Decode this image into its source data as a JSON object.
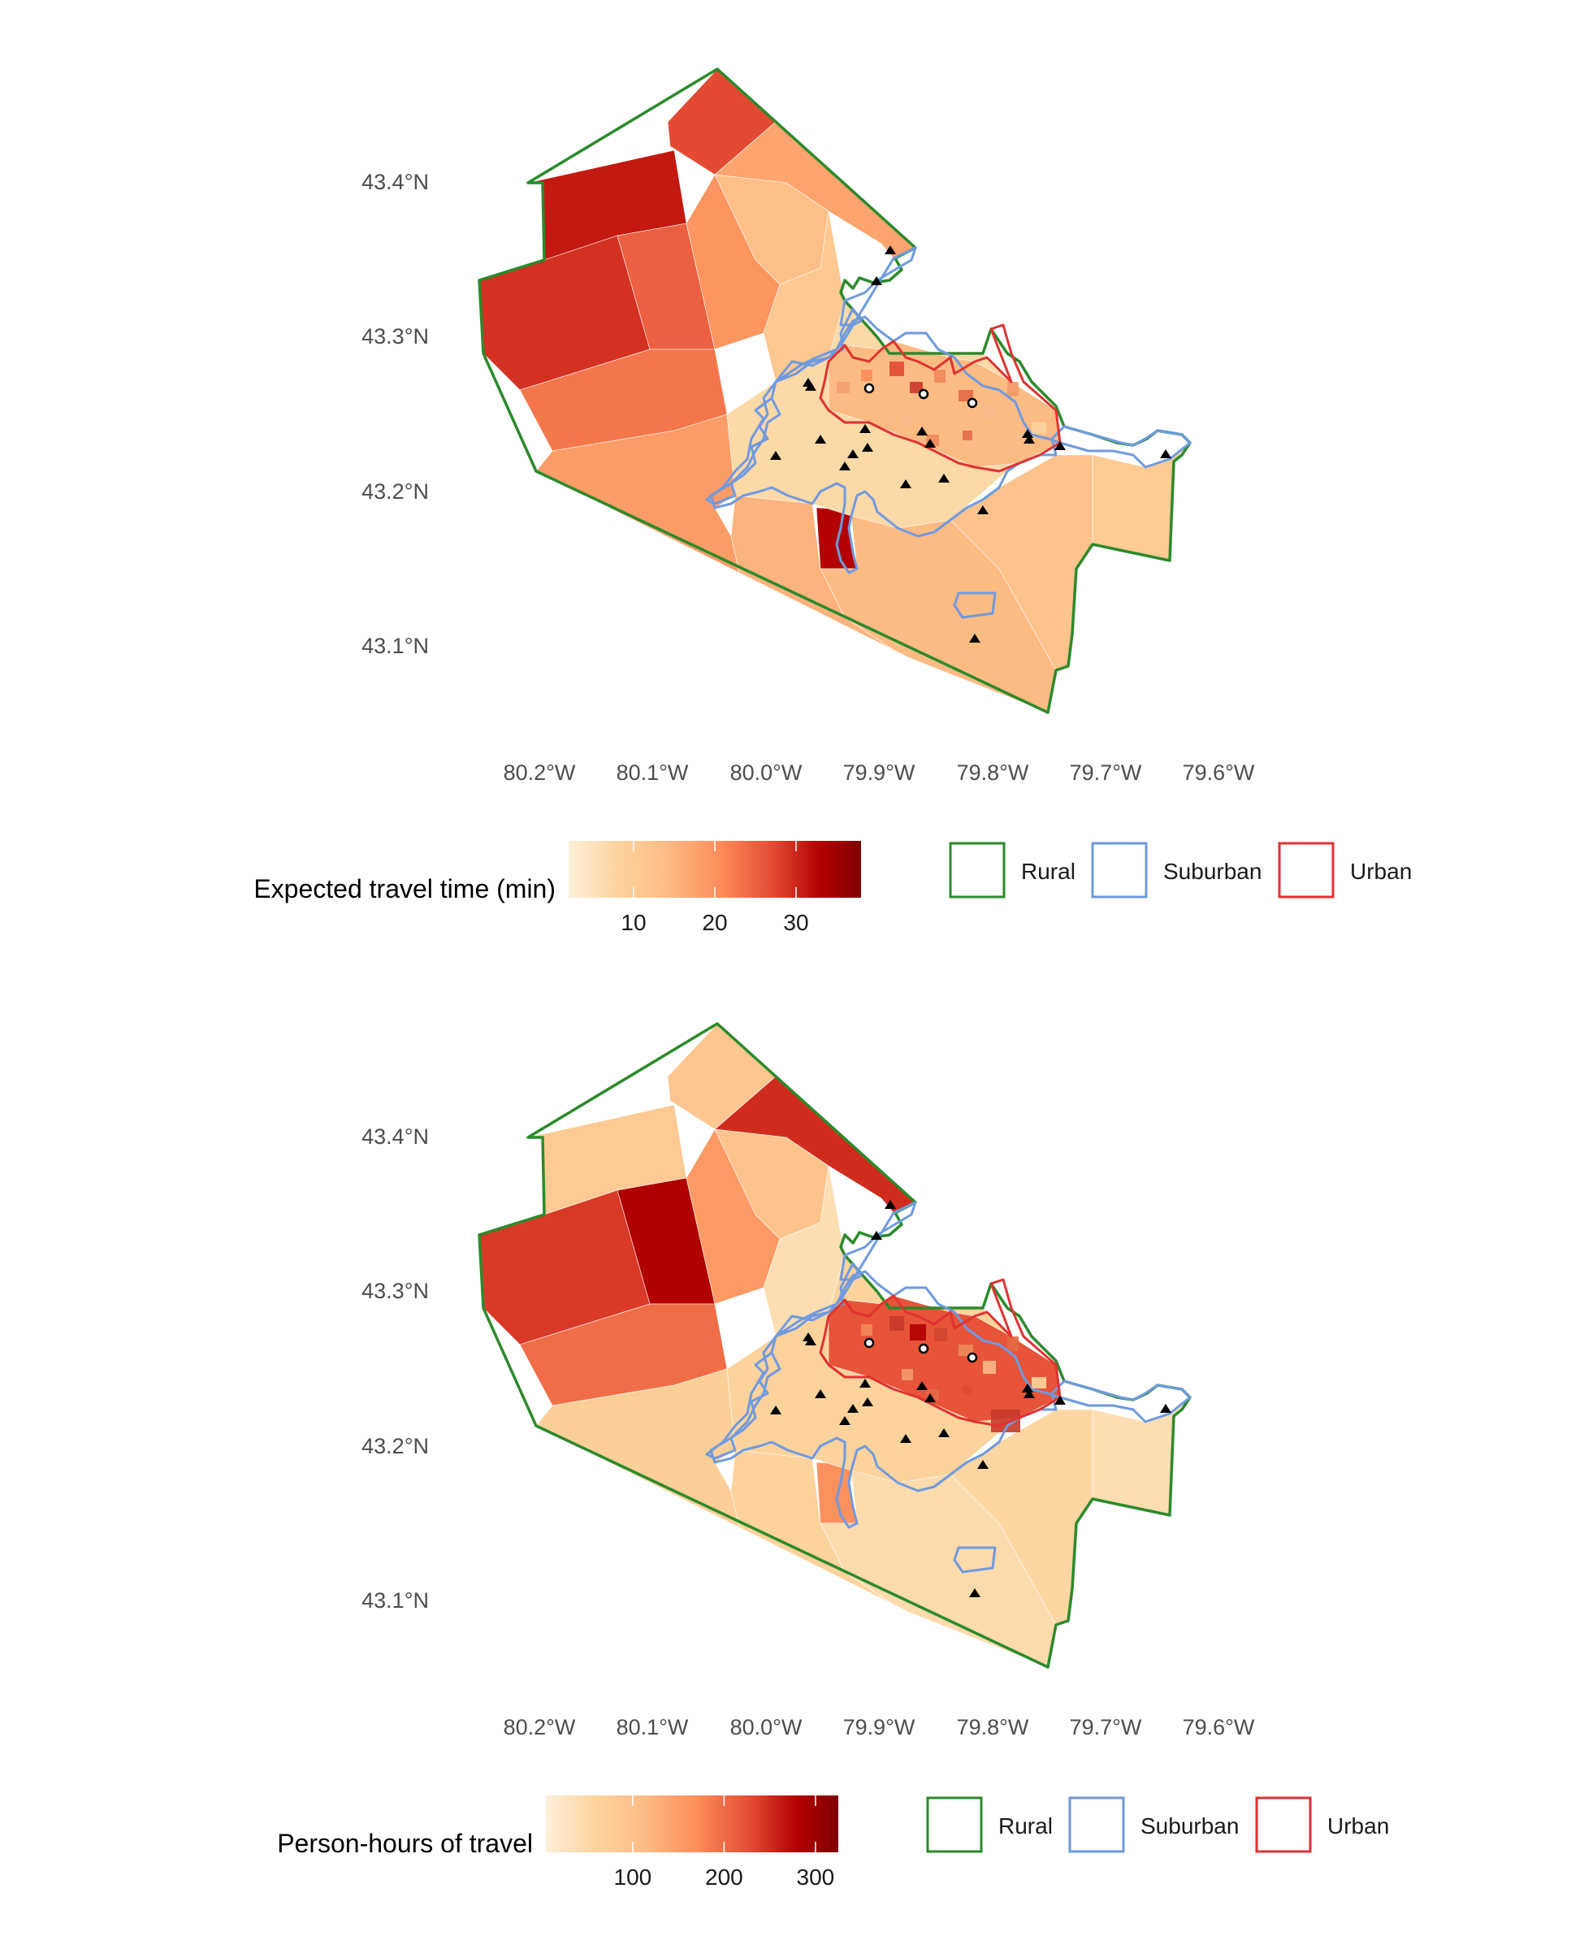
{
  "chart_data": [
    {
      "type": "heatmap",
      "subtype": "choropleth-map",
      "latitude_ticks": [
        "43.4°N",
        "43.3°N",
        "43.2°N",
        "43.1°N"
      ],
      "longitude_ticks": [
        "80.2°W",
        "80.1°W",
        "80.0°W",
        "79.9°W",
        "79.8°W",
        "79.7°W",
        "79.6°W"
      ],
      "colorbar": {
        "title": "Expected travel time (min)",
        "ticks": [
          "10",
          "20",
          "30"
        ],
        "tick_values": [
          10,
          20,
          30
        ],
        "range": [
          2,
          38
        ],
        "colors": [
          "#fdf0d9",
          "#fdd49e",
          "#fdbb84",
          "#fc8d59",
          "#e34a33",
          "#b30000",
          "#7f0000"
        ]
      },
      "region_legend": [
        {
          "label": "Rural",
          "color": "#2b8a2b"
        },
        {
          "label": "Suburban",
          "color": "#6f9ae0"
        },
        {
          "label": "Urban",
          "color": "#e03232"
        }
      ],
      "zones": [
        {
          "id": "far-north-cap",
          "value": 26
        },
        {
          "id": "north-band",
          "value": 17
        },
        {
          "id": "north-mid",
          "value": 13
        },
        {
          "id": "northwest-top",
          "value": 30
        },
        {
          "id": "west-upper",
          "value": 28
        },
        {
          "id": "west-inner-upper",
          "value": 24
        },
        {
          "id": "west-lower",
          "value": 22
        },
        {
          "id": "central-diagonal",
          "value": 19
        },
        {
          "id": "central-north",
          "value": 11
        },
        {
          "id": "west-south",
          "value": 18
        },
        {
          "id": "south-central",
          "value": 15
        },
        {
          "id": "south-west-block",
          "value": 32
        },
        {
          "id": "south-east",
          "value": 14
        },
        {
          "id": "east-plain",
          "value": 12
        },
        {
          "id": "east-end",
          "value": 10
        },
        {
          "id": "suburb-core",
          "value": 7
        },
        {
          "id": "urban-core",
          "value": 14
        }
      ]
    },
    {
      "type": "heatmap",
      "subtype": "choropleth-map",
      "latitude_ticks": [
        "43.4°N",
        "43.3°N",
        "43.2°N",
        "43.1°N"
      ],
      "longitude_ticks": [
        "80.2°W",
        "80.1°W",
        "80.0°W",
        "79.9°W",
        "79.8°W",
        "79.7°W",
        "79.6°W"
      ],
      "colorbar": {
        "title": "Person-hours of travel",
        "ticks": [
          "100",
          "200",
          "300"
        ],
        "tick_values": [
          100,
          200,
          300
        ],
        "range": [
          5,
          325
        ],
        "colors": [
          "#fdf0d9",
          "#fdd49e",
          "#fdbb84",
          "#fc8d59",
          "#e34a33",
          "#b30000",
          "#7f0000"
        ]
      },
      "region_legend": [
        {
          "label": "Rural",
          "color": "#2b8a2b"
        },
        {
          "label": "Suburban",
          "color": "#6f9ae0"
        },
        {
          "label": "Urban",
          "color": "#e03232"
        }
      ],
      "zones": [
        {
          "id": "far-north-cap",
          "value": 90
        },
        {
          "id": "north-band",
          "value": 240
        },
        {
          "id": "north-mid",
          "value": 95
        },
        {
          "id": "northwest-top",
          "value": 80
        },
        {
          "id": "west-upper",
          "value": 230
        },
        {
          "id": "west-inner-upper",
          "value": 275
        },
        {
          "id": "west-lower",
          "value": 190
        },
        {
          "id": "central-diagonal",
          "value": 150
        },
        {
          "id": "central-north",
          "value": 40
        },
        {
          "id": "west-south",
          "value": 70
        },
        {
          "id": "south-central",
          "value": 60
        },
        {
          "id": "south-west-block",
          "value": 160
        },
        {
          "id": "south-east",
          "value": 45
        },
        {
          "id": "east-plain",
          "value": 55
        },
        {
          "id": "east-end",
          "value": 40
        },
        {
          "id": "suburb-core",
          "value": 60
        },
        {
          "id": "urban-core",
          "value": 210
        }
      ]
    }
  ]
}
